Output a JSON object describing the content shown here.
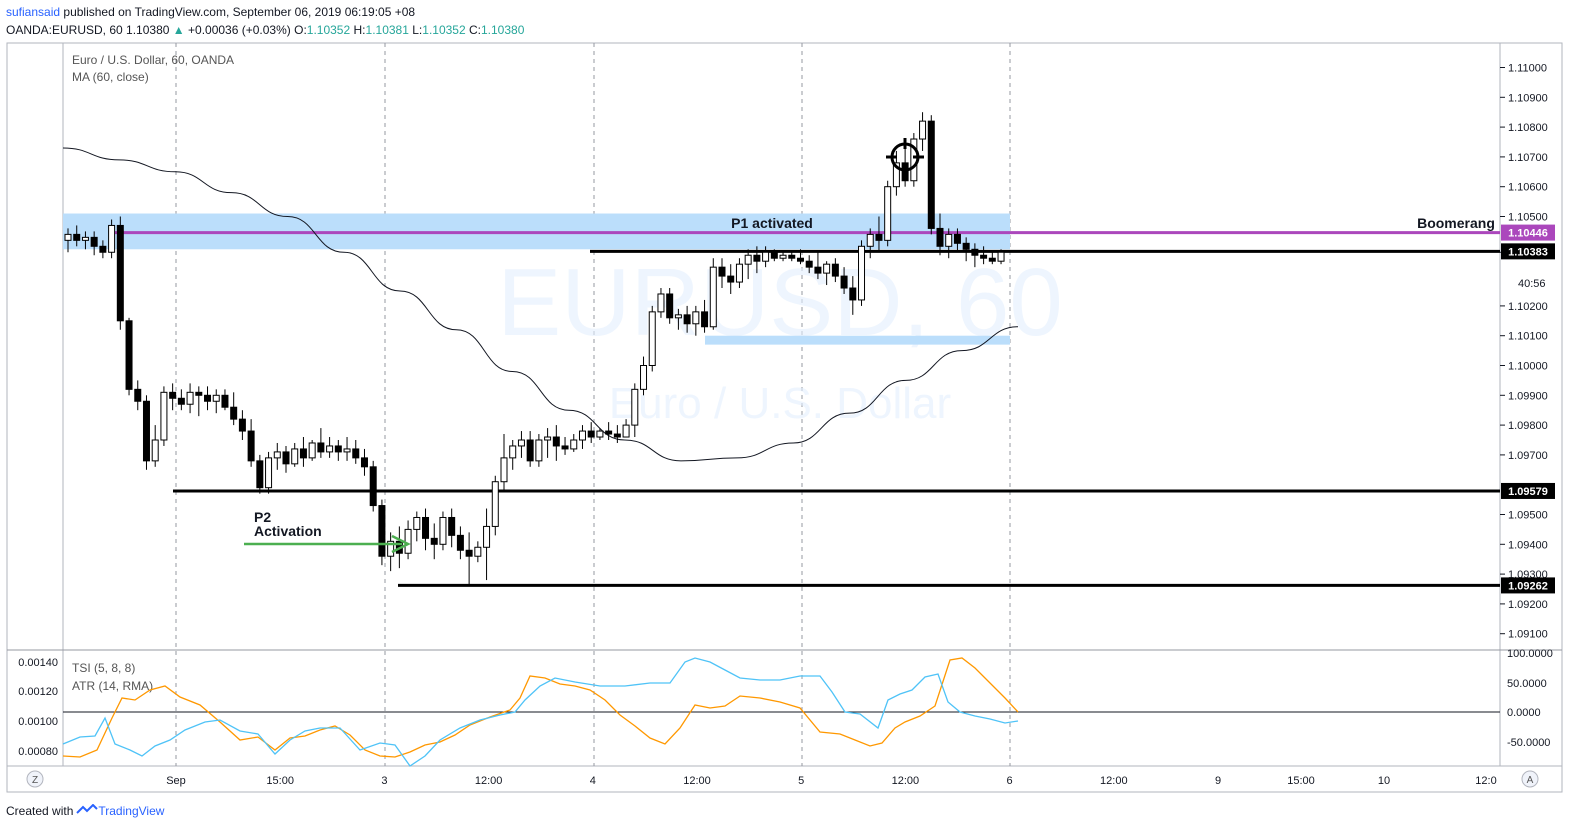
{
  "header": {
    "author": "sufiansaid",
    "published": "published on TradingView.com, September 06, 2019 06:19:05 +08",
    "symbol": "OANDA:EURUSD, 60",
    "last": "1.10380",
    "change": "+0.00036 (+0.03%)",
    "o_label": "O:",
    "o": "1.10352",
    "h_label": "H:",
    "h": "1.10381",
    "l_label": "L:",
    "l": "1.10352",
    "c_label": "C:",
    "c": "1.10380"
  },
  "chart": {
    "title": "Euro / U.S. Dollar, 60, OANDA",
    "indicator": "MA (60, close)",
    "watermark_symbol": "EURUSD, 60",
    "watermark_name": "Euro / U.S. Dollar"
  },
  "annotations": {
    "p1": "P1 activated",
    "p2_line1": "P2",
    "p2_line2": "Activation",
    "boomerang": "Boomerang"
  },
  "price_axis": {
    "ticks": [
      "1.11000",
      "1.10900",
      "1.10800",
      "1.10700",
      "1.10600",
      "1.10500",
      "1.10380",
      "1.10200",
      "1.10100",
      "1.10000",
      "1.09900",
      "1.09800",
      "1.09700",
      "1.09500",
      "1.09400",
      "1.09300",
      "1.09200",
      "1.09100"
    ],
    "countdown": "40:56"
  },
  "price_labels": [
    {
      "value": "1.10446",
      "color": "#ab47bc"
    },
    {
      "value": "1.10383",
      "color": "#000000"
    },
    {
      "value": "1.09579",
      "color": "#000000"
    },
    {
      "value": "1.09262",
      "color": "#000000"
    }
  ],
  "time_axis": [
    "Sep",
    "15:00",
    "3",
    "12:00",
    "4",
    "12:00",
    "5",
    "12:00",
    "6",
    "12:00",
    "9",
    "15:00",
    "10",
    "12:0"
  ],
  "corner_buttons": {
    "left": "Z",
    "right": "A"
  },
  "sub_pane": {
    "label1": "TSI (5, 8, 8)",
    "label2": "ATR (14, RMA)",
    "left_axis": [
      "0.00140",
      "0.00120",
      "0.00100",
      "0.00080"
    ],
    "right_axis": [
      "100.0000",
      "50.0000",
      "0.0000",
      "-50.0000"
    ]
  },
  "footer": {
    "created": "Created with",
    "brand": "TradingView"
  },
  "colors": {
    "zone": "#bbdefb",
    "purple": "#ab47bc",
    "arrow": "#4caf50",
    "tsi": "#4fc3f7",
    "atr": "#ff9800"
  },
  "chart_data": {
    "type": "candlestick",
    "ylim": [
      1.0905,
      1.1115
    ],
    "series": [
      {
        "name": "EURUSD 60",
        "values": [
          [
            1.1042,
            1.1046,
            1.1038,
            1.1044
          ],
          [
            1.1044,
            1.1047,
            1.104,
            1.1042
          ],
          [
            1.1042,
            1.1045,
            1.1039,
            1.1043
          ],
          [
            1.1043,
            1.1045,
            1.1037,
            1.104
          ],
          [
            1.104,
            1.1042,
            1.1036,
            1.1038
          ],
          [
            1.1038,
            1.1049,
            1.1036,
            1.1047
          ],
          [
            1.1047,
            1.105,
            1.1012,
            1.1015
          ],
          [
            1.1015,
            1.1016,
            1.099,
            1.0992
          ],
          [
            1.0992,
            1.0995,
            1.0985,
            1.0988
          ],
          [
            1.0988,
            1.099,
            1.0965,
            1.0968
          ],
          [
            1.0968,
            1.098,
            1.0966,
            1.0975
          ],
          [
            1.0975,
            1.0993,
            1.0973,
            1.0991
          ],
          [
            1.0991,
            1.0994,
            1.0985,
            1.0989
          ],
          [
            1.0989,
            1.0992,
            1.0985,
            1.0987
          ],
          [
            1.0987,
            1.0994,
            1.0984,
            1.0991
          ],
          [
            1.0991,
            1.0993,
            1.0983,
            1.099
          ],
          [
            1.099,
            1.0993,
            1.0985,
            1.0988
          ],
          [
            1.0988,
            1.0992,
            1.0984,
            1.099
          ],
          [
            1.099,
            1.0992,
            1.0985,
            1.0986
          ],
          [
            1.0986,
            1.0991,
            1.098,
            1.0982
          ],
          [
            1.0982,
            1.0985,
            1.0975,
            1.0978
          ],
          [
            1.0978,
            1.0982,
            1.0966,
            1.0968
          ],
          [
            1.0968,
            1.097,
            1.0957,
            1.0959
          ],
          [
            1.0959,
            1.0971,
            1.0957,
            1.0969
          ],
          [
            1.0969,
            1.0974,
            1.0965,
            1.0971
          ],
          [
            1.0971,
            1.0973,
            1.0964,
            1.0967
          ],
          [
            1.0967,
            1.0974,
            1.0966,
            1.0972
          ],
          [
            1.0972,
            1.0976,
            1.0966,
            1.0969
          ],
          [
            1.0969,
            1.0975,
            1.0968,
            1.0974
          ],
          [
            1.0974,
            1.0979,
            1.0969,
            1.0971
          ],
          [
            1.0971,
            1.0976,
            1.0969,
            1.0973
          ],
          [
            1.0973,
            1.0975,
            1.0968,
            1.0971
          ],
          [
            1.0971,
            1.0976,
            1.0968,
            1.0972
          ],
          [
            1.0972,
            1.0975,
            1.0967,
            1.0969
          ],
          [
            1.0969,
            1.0972,
            1.0963,
            1.0966
          ],
          [
            1.0966,
            1.0968,
            1.0951,
            1.0953
          ],
          [
            1.0953,
            1.0955,
            1.0933,
            1.0936
          ],
          [
            1.0936,
            1.0944,
            1.0931,
            1.0941
          ],
          [
            1.0941,
            1.0946,
            1.0932,
            1.0937
          ],
          [
            1.0937,
            1.0948,
            1.0935,
            1.0945
          ],
          [
            1.0945,
            1.0951,
            1.0941,
            1.0949
          ],
          [
            1.0949,
            1.0952,
            1.0938,
            1.0942
          ],
          [
            1.0942,
            1.0947,
            1.0935,
            1.094
          ],
          [
            1.094,
            1.0951,
            1.0938,
            1.0949
          ],
          [
            1.0949,
            1.0952,
            1.0939,
            1.0943
          ],
          [
            1.0943,
            1.0946,
            1.0935,
            1.0938
          ],
          [
            1.0938,
            1.0944,
            1.0926,
            1.0936
          ],
          [
            1.0936,
            1.0941,
            1.0934,
            1.0939
          ],
          [
            1.0939,
            1.0952,
            1.0928,
            1.0946
          ],
          [
            1.0946,
            1.0963,
            1.0943,
            1.0961
          ],
          [
            1.0961,
            1.0977,
            1.0958,
            1.0969
          ],
          [
            1.0969,
            1.0975,
            1.0965,
            1.0973
          ],
          [
            1.0973,
            1.0978,
            1.0969,
            1.0975
          ],
          [
            1.0975,
            1.0978,
            1.0966,
            1.0968
          ],
          [
            1.0968,
            1.0977,
            1.0966,
            1.0975
          ],
          [
            1.0975,
            1.0979,
            1.0969,
            1.0976
          ],
          [
            1.0976,
            1.098,
            1.0968,
            1.0973
          ],
          [
            1.0973,
            1.0976,
            1.097,
            1.0972
          ],
          [
            1.0972,
            1.0977,
            1.0971,
            1.0975
          ],
          [
            1.0975,
            1.098,
            1.0972,
            1.0978
          ],
          [
            1.0978,
            1.0981,
            1.0974,
            1.0976
          ],
          [
            1.0976,
            1.0979,
            1.0975,
            1.0978
          ],
          [
            1.0978,
            1.0981,
            1.0975,
            1.0977
          ],
          [
            1.0977,
            1.098,
            1.0974,
            1.0976
          ],
          [
            1.0976,
            1.0982,
            1.0976,
            1.098
          ],
          [
            1.098,
            1.0994,
            1.0976,
            1.0992
          ],
          [
            1.0992,
            1.1003,
            1.099,
            1.1
          ],
          [
            1.1,
            1.102,
            1.0998,
            1.1018
          ],
          [
            1.1018,
            1.1026,
            1.1016,
            1.1024
          ],
          [
            1.1024,
            1.1026,
            1.1014,
            1.1016
          ],
          [
            1.1016,
            1.1019,
            1.1012,
            1.1017
          ],
          [
            1.1017,
            1.102,
            1.1011,
            1.1014
          ],
          [
            1.1014,
            1.102,
            1.101,
            1.1018
          ],
          [
            1.1018,
            1.1022,
            1.1011,
            1.1013
          ],
          [
            1.1013,
            1.1036,
            1.1012,
            1.1033
          ],
          [
            1.1033,
            1.1036,
            1.1026,
            1.103
          ],
          [
            1.103,
            1.1034,
            1.1024,
            1.1028
          ],
          [
            1.1028,
            1.1036,
            1.1026,
            1.1034
          ],
          [
            1.1034,
            1.1039,
            1.1029,
            1.1037
          ],
          [
            1.1037,
            1.104,
            1.1031,
            1.1035
          ],
          [
            1.1035,
            1.104,
            1.1033,
            1.1038
          ],
          [
            1.1038,
            1.1039,
            1.1035,
            1.1036
          ],
          [
            1.1036,
            1.1038,
            1.1035,
            1.1037
          ],
          [
            1.1037,
            1.1038,
            1.1035,
            1.1036
          ],
          [
            1.1036,
            1.1039,
            1.1034,
            1.1035
          ],
          [
            1.1035,
            1.1037,
            1.1031,
            1.1033
          ],
          [
            1.1033,
            1.1038,
            1.1029,
            1.1031
          ],
          [
            1.1031,
            1.1035,
            1.1027,
            1.1034
          ],
          [
            1.1034,
            1.1036,
            1.1028,
            1.103
          ],
          [
            1.103,
            1.1033,
            1.1024,
            1.1026
          ],
          [
            1.1026,
            1.103,
            1.1017,
            1.1022
          ],
          [
            1.1022,
            1.1042,
            1.102,
            1.104
          ],
          [
            1.104,
            1.1046,
            1.1036,
            1.1044
          ],
          [
            1.1044,
            1.105,
            1.1038,
            1.1042
          ],
          [
            1.1042,
            1.1062,
            1.104,
            1.106
          ],
          [
            1.106,
            1.1072,
            1.1057,
            1.1068
          ],
          [
            1.1068,
            1.1074,
            1.106,
            1.1062
          ],
          [
            1.1062,
            1.1078,
            1.106,
            1.1076
          ],
          [
            1.1076,
            1.1085,
            1.1072,
            1.1082
          ],
          [
            1.1082,
            1.1084,
            1.1044,
            1.1046
          ],
          [
            1.1046,
            1.1051,
            1.1037,
            1.104
          ],
          [
            1.104,
            1.1046,
            1.1036,
            1.1044
          ],
          [
            1.1044,
            1.1046,
            1.1038,
            1.1041
          ],
          [
            1.1041,
            1.1043,
            1.1035,
            1.1039
          ],
          [
            1.1039,
            1.1041,
            1.1033,
            1.1037
          ],
          [
            1.1037,
            1.104,
            1.1034,
            1.1036
          ],
          [
            1.1036,
            1.1038,
            1.1034,
            1.1035
          ],
          [
            1.1035,
            1.1039,
            1.1034,
            1.1038
          ]
        ]
      },
      {
        "name": "MA (60, close)",
        "values": [
          1.1073,
          1.1069,
          1.1065,
          1.1058,
          1.105,
          1.1038,
          1.1025,
          1.1012,
          1.0998,
          1.0985,
          1.0975,
          1.0968,
          1.0969,
          1.0974,
          1.0984,
          1.0995,
          1.1005,
          1.1013
        ]
      }
    ],
    "levels": {
      "boomerang": 1.10446,
      "resistance": 1.10383,
      "support_1": 1.09579,
      "support_2": 1.09262
    },
    "zones": [
      [
        1.1039,
        1.1051
      ],
      [
        1.1007,
        1.101
      ]
    ]
  }
}
